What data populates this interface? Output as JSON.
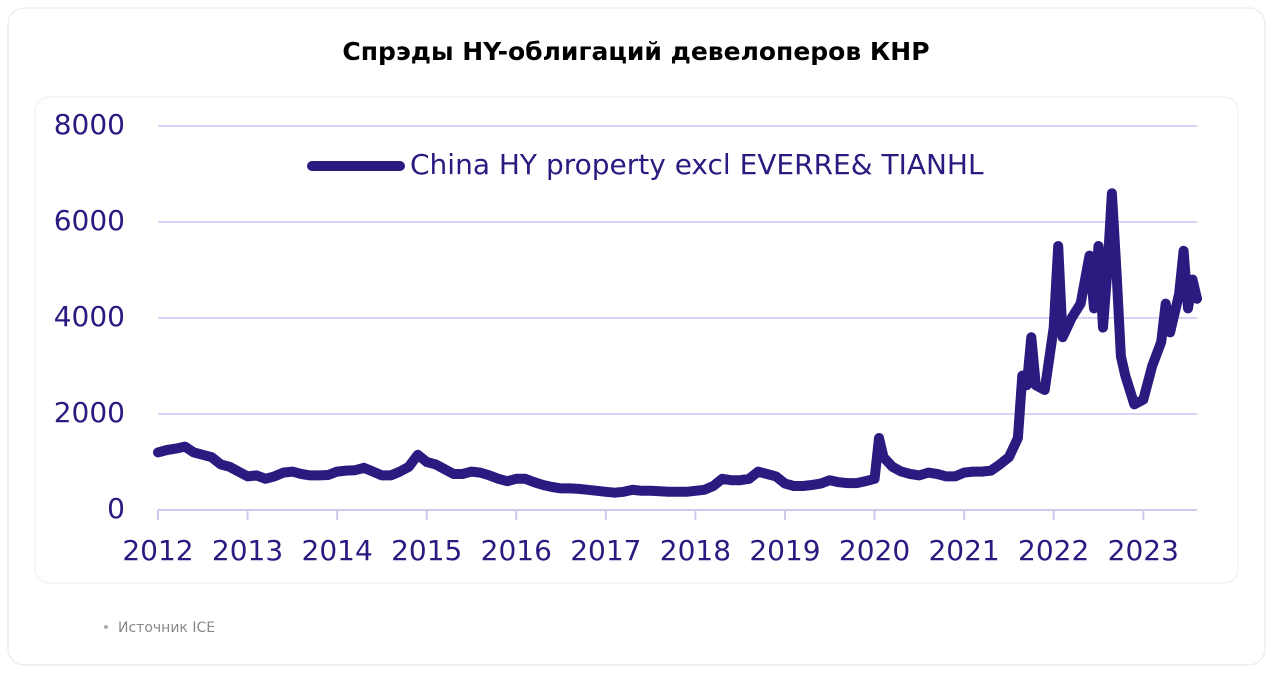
{
  "chart_data": {
    "type": "line",
    "title": "Спрэды HY-облигаций девелоперов КНР",
    "source": "Источник ICE",
    "legend": "top-left",
    "grid": true,
    "x": [
      2012.0,
      2012.1,
      2012.2,
      2012.3,
      2012.4,
      2012.5,
      2012.6,
      2012.7,
      2012.8,
      2012.9,
      2013.0,
      2013.1,
      2013.2,
      2013.3,
      2013.4,
      2013.5,
      2013.6,
      2013.7,
      2013.8,
      2013.9,
      2014.0,
      2014.1,
      2014.2,
      2014.3,
      2014.4,
      2014.5,
      2014.6,
      2014.7,
      2014.8,
      2014.9,
      2015.0,
      2015.1,
      2015.2,
      2015.3,
      2015.4,
      2015.5,
      2015.6,
      2015.7,
      2015.8,
      2015.9,
      2016.0,
      2016.1,
      2016.2,
      2016.3,
      2016.4,
      2016.5,
      2016.6,
      2016.7,
      2016.8,
      2016.9,
      2017.0,
      2017.1,
      2017.2,
      2017.3,
      2017.4,
      2017.5,
      2017.6,
      2017.7,
      2017.8,
      2017.9,
      2018.0,
      2018.1,
      2018.2,
      2018.3,
      2018.4,
      2018.5,
      2018.6,
      2018.7,
      2018.8,
      2018.9,
      2019.0,
      2019.1,
      2019.2,
      2019.3,
      2019.4,
      2019.5,
      2019.6,
      2019.7,
      2019.8,
      2019.9,
      2020.0,
      2020.05,
      2020.1,
      2020.2,
      2020.3,
      2020.4,
      2020.5,
      2020.6,
      2020.7,
      2020.8,
      2020.9,
      2021.0,
      2021.1,
      2021.2,
      2021.3,
      2021.4,
      2021.5,
      2021.6,
      2021.65,
      2021.7,
      2021.75,
      2021.8,
      2021.9,
      2022.0,
      2022.05,
      2022.1,
      2022.2,
      2022.3,
      2022.4,
      2022.45,
      2022.5,
      2022.55,
      2022.6,
      2022.65,
      2022.7,
      2022.75,
      2022.8,
      2022.9,
      2023.0,
      2023.1,
      2023.2,
      2023.25,
      2023.3,
      2023.4,
      2023.45,
      2023.5,
      2023.55,
      2023.6
    ],
    "series": [
      {
        "name": "China HY property excl EVERRE& TIANHL",
        "color": "#2b1a80",
        "values": [
          1200,
          1250,
          1280,
          1320,
          1200,
          1150,
          1100,
          950,
          900,
          800,
          700,
          720,
          650,
          700,
          780,
          800,
          750,
          720,
          720,
          730,
          800,
          820,
          830,
          880,
          800,
          720,
          720,
          800,
          900,
          1150,
          1000,
          950,
          850,
          750,
          750,
          800,
          780,
          720,
          650,
          600,
          650,
          650,
          580,
          520,
          480,
          450,
          450,
          440,
          420,
          400,
          380,
          360,
          380,
          420,
          400,
          400,
          390,
          380,
          380,
          380,
          400,
          420,
          500,
          650,
          620,
          620,
          650,
          800,
          750,
          700,
          550,
          500,
          500,
          520,
          550,
          620,
          580,
          560,
          560,
          600,
          650,
          1500,
          1100,
          900,
          800,
          750,
          720,
          780,
          750,
          700,
          700,
          780,
          800,
          800,
          820,
          950,
          1100,
          1500,
          2800,
          2600,
          3600,
          2600,
          2500,
          3800,
          5500,
          3600,
          4000,
          4300,
          5300,
          4200,
          5500,
          3800,
          5000,
          6600,
          5000,
          3200,
          2800,
          2200,
          2300,
          3000,
          3500,
          4300,
          3700,
          4500,
          5400,
          4200,
          4800,
          4400
        ]
      }
    ],
    "xlim": [
      2012,
      2023.6
    ],
    "xticks": [
      2012,
      2013,
      2014,
      2015,
      2016,
      2017,
      2018,
      2019,
      2020,
      2021,
      2022,
      2023
    ],
    "ylim": [
      0,
      8000
    ],
    "yticks": [
      0,
      2000,
      4000,
      6000,
      8000
    ]
  }
}
